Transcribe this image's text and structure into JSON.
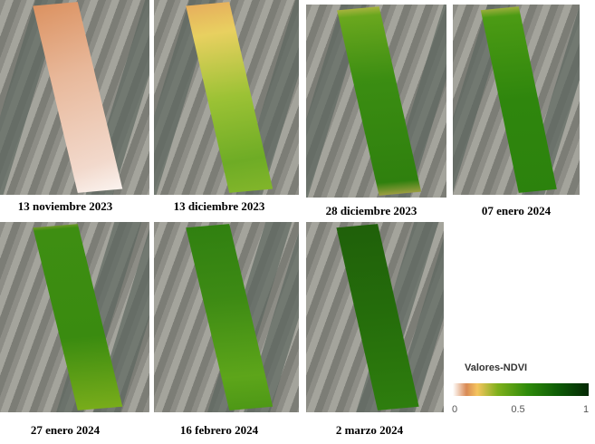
{
  "panels": [
    {
      "date": "13 noviembre 2023",
      "fill": "linear-gradient(160deg,#d98a55,#e8b89a 40%,#f2d9cc 80%,#fff)"
    },
    {
      "date": "13 diciembre 2023",
      "fill": "linear-gradient(170deg,#e6a35c,#e8d060 20%,#9cc235 50%,#6eac25 80%,#88b82c)"
    },
    {
      "date": "28 diciembre 2023",
      "fill": "linear-gradient(175deg,#e8c060,#6aa71e 8%,#3b8d12 40%,#2f800e 90%,#e0b060)"
    },
    {
      "date": "07 enero 2024",
      "fill": "linear-gradient(175deg,#e8c060,#4c9b14 8%,#2f860d 50%,#2c820d)"
    },
    {
      "date": "27 enero 2024",
      "fill": "linear-gradient(175deg,#e8b060,#3e8e12 6%,#3a8b10 60%,#7fb01c)"
    },
    {
      "date": "16 febrero 2024",
      "fill": "linear-gradient(175deg,#2f7f10,#3d8a14 40%,#5da51a 80%,#4a9515)"
    },
    {
      "date": "2 marzo 2024",
      "fill": "linear-gradient(175deg,#1f5f0a,#256d0b 50%,#2f7f0e)"
    }
  ],
  "legend": {
    "title": "Valores-NDVI",
    "ticks": [
      "0",
      "0.5",
      "1"
    ],
    "colors": [
      "#ffffff",
      "#d98a55",
      "#f5c45e",
      "#7fb01c",
      "#2e8b0a",
      "#052805"
    ]
  }
}
